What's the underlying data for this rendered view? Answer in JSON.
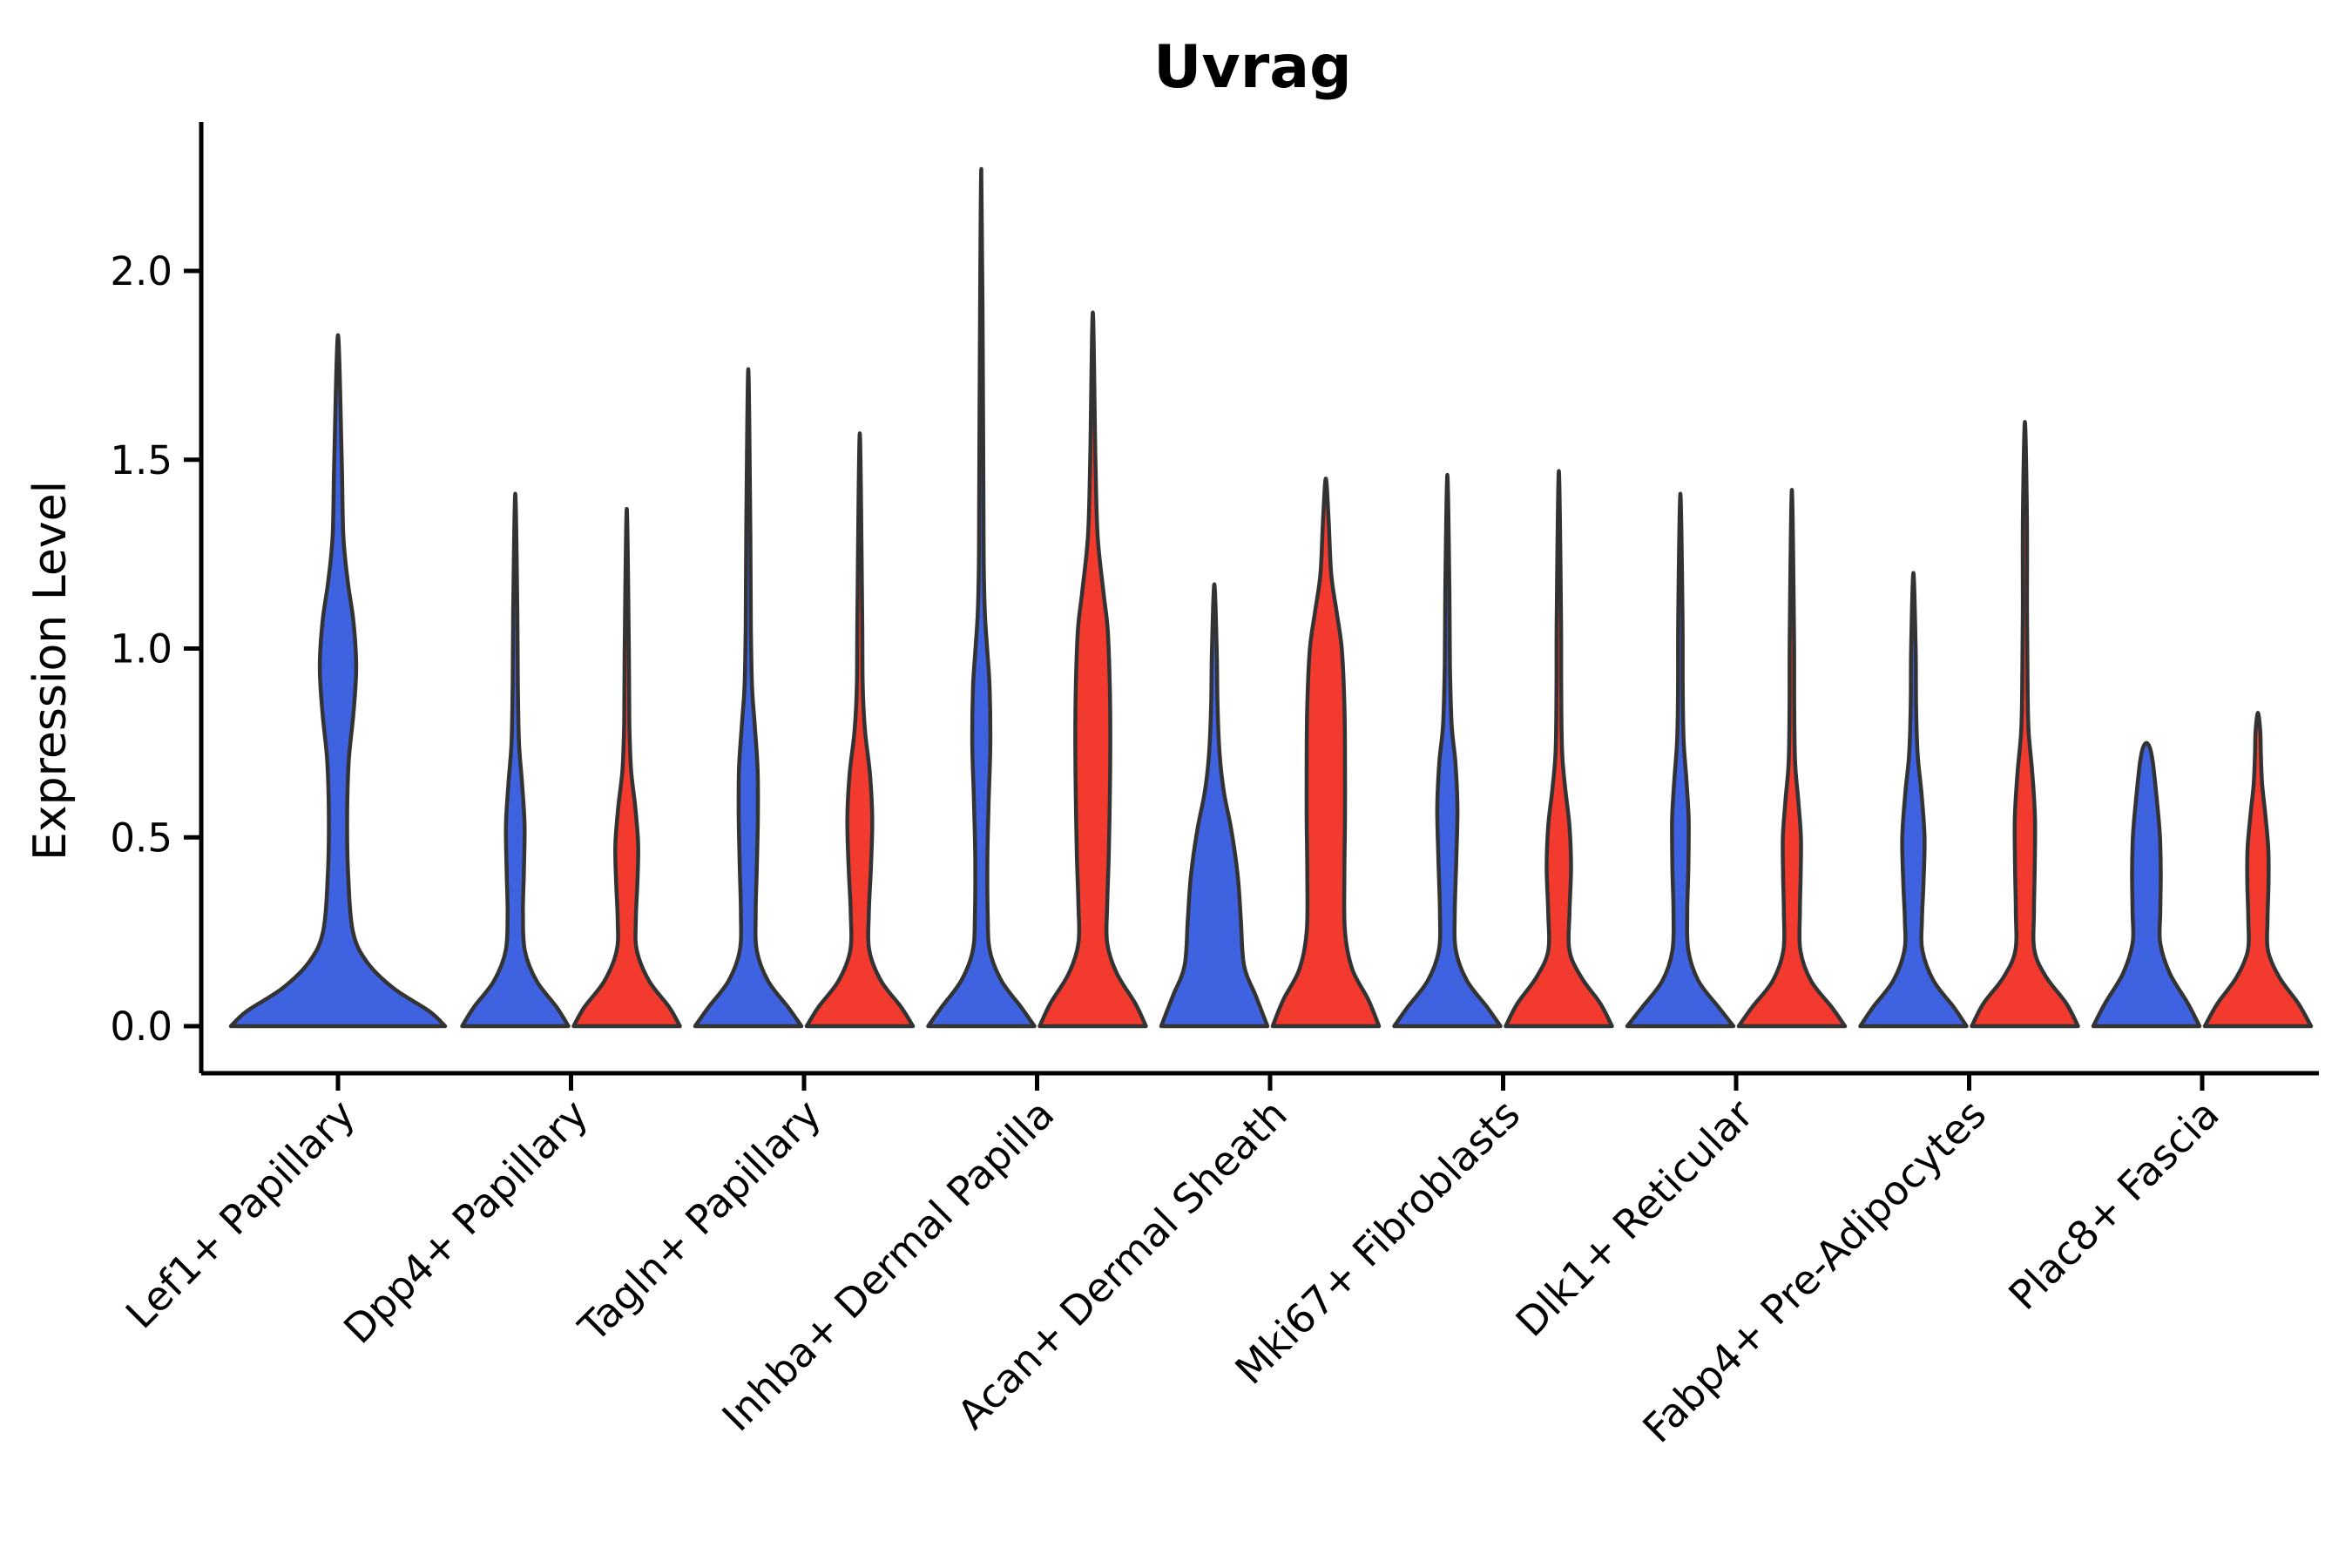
{
  "title": "Uvrag",
  "chart_data": {
    "type": "violin",
    "title": "Uvrag",
    "ylabel": "Expression Level",
    "xlabel": "",
    "grid": false,
    "legend": "none",
    "ylim": [
      -0.12,
      2.39
    ],
    "ytick_labels": [
      "0.0",
      "0.5",
      "1.0",
      "1.5",
      "2.0"
    ],
    "ytick_values": [
      0.0,
      0.5,
      1.0,
      1.5,
      2.0
    ],
    "colors": {
      "blue": "#3f62e0",
      "red": "#f23a2e",
      "outline": "#333333",
      "axis": "#000000"
    },
    "categories": [
      "Lef1+ Papillary",
      "Dpp4+ Papillary",
      "Tagln+ Papillary",
      "Inhba+ Dermal Papilla",
      "Acan+ Dermal Sheath",
      "Mki67+ Fibroblasts",
      "Dlk1+ Reticular",
      "Fabp4+ Pre-Adipocytes",
      "Plac8+ Fascia"
    ],
    "violins": [
      {
        "category": "Lef1+ Papillary",
        "violins": [
          {
            "group": "blue",
            "max": 1.83,
            "profile": [
              [
                0,
                1.0
              ],
              [
                0.04,
                0.85
              ],
              [
                0.1,
                0.52
              ],
              [
                0.17,
                0.27
              ],
              [
                0.25,
                0.14
              ],
              [
                0.4,
                0.095
              ],
              [
                0.55,
                0.085
              ],
              [
                0.7,
                0.1
              ],
              [
                0.83,
                0.145
              ],
              [
                0.95,
                0.17
              ],
              [
                1.07,
                0.145
              ],
              [
                1.18,
                0.09
              ],
              [
                1.3,
                0.05
              ],
              [
                1.5,
                0.035
              ],
              [
                1.83,
                0
              ]
            ]
          }
        ]
      },
      {
        "category": "Dpp4+ Papillary",
        "violins": [
          {
            "group": "blue",
            "max": 1.41,
            "profile": [
              [
                0,
                1.0
              ],
              [
                0.05,
                0.78
              ],
              [
                0.12,
                0.4
              ],
              [
                0.2,
                0.18
              ],
              [
                0.3,
                0.145
              ],
              [
                0.4,
                0.16
              ],
              [
                0.53,
                0.175
              ],
              [
                0.64,
                0.13
              ],
              [
                0.75,
                0.07
              ],
              [
                0.9,
                0.05
              ],
              [
                1.1,
                0.04
              ],
              [
                1.41,
                0
              ]
            ]
          },
          {
            "group": "red",
            "max": 1.37,
            "profile": [
              [
                0,
                1.0
              ],
              [
                0.05,
                0.8
              ],
              [
                0.12,
                0.42
              ],
              [
                0.2,
                0.19
              ],
              [
                0.28,
                0.17
              ],
              [
                0.38,
                0.2
              ],
              [
                0.48,
                0.215
              ],
              [
                0.58,
                0.16
              ],
              [
                0.68,
                0.08
              ],
              [
                0.8,
                0.05
              ],
              [
                1.0,
                0.04
              ],
              [
                1.37,
                0
              ]
            ]
          }
        ]
      },
      {
        "category": "Tagln+ Papillary",
        "violins": [
          {
            "group": "blue",
            "max": 1.74,
            "profile": [
              [
                0,
                1.0
              ],
              [
                0.05,
                0.75
              ],
              [
                0.12,
                0.37
              ],
              [
                0.2,
                0.16
              ],
              [
                0.3,
                0.14
              ],
              [
                0.42,
                0.16
              ],
              [
                0.55,
                0.18
              ],
              [
                0.68,
                0.175
              ],
              [
                0.8,
                0.12
              ],
              [
                0.9,
                0.07
              ],
              [
                1.05,
                0.05
              ],
              [
                1.3,
                0.04
              ],
              [
                1.74,
                0
              ]
            ]
          },
          {
            "group": "red",
            "max": 1.57,
            "profile": [
              [
                0,
                1.0
              ],
              [
                0.05,
                0.78
              ],
              [
                0.12,
                0.4
              ],
              [
                0.2,
                0.18
              ],
              [
                0.3,
                0.17
              ],
              [
                0.42,
                0.21
              ],
              [
                0.55,
                0.235
              ],
              [
                0.67,
                0.19
              ],
              [
                0.78,
                0.1
              ],
              [
                0.9,
                0.055
              ],
              [
                1.1,
                0.045
              ],
              [
                1.57,
                0
              ]
            ]
          }
        ]
      },
      {
        "category": "Inhba+ Dermal Papilla",
        "violins": [
          {
            "group": "blue",
            "max": 2.27,
            "profile": [
              [
                0,
                1.0
              ],
              [
                0.05,
                0.75
              ],
              [
                0.12,
                0.38
              ],
              [
                0.2,
                0.16
              ],
              [
                0.3,
                0.12
              ],
              [
                0.45,
                0.115
              ],
              [
                0.6,
                0.14
              ],
              [
                0.75,
                0.17
              ],
              [
                0.9,
                0.155
              ],
              [
                1.0,
                0.11
              ],
              [
                1.1,
                0.065
              ],
              [
                1.25,
                0.045
              ],
              [
                1.6,
                0.035
              ],
              [
                2.27,
                0
              ]
            ]
          },
          {
            "group": "red",
            "max": 1.89,
            "profile": [
              [
                0,
                1.0
              ],
              [
                0.06,
                0.8
              ],
              [
                0.14,
                0.45
              ],
              [
                0.22,
                0.27
              ],
              [
                0.32,
                0.27
              ],
              [
                0.45,
                0.3
              ],
              [
                0.6,
                0.32
              ],
              [
                0.75,
                0.33
              ],
              [
                0.9,
                0.32
              ],
              [
                1.05,
                0.28
              ],
              [
                1.15,
                0.2
              ],
              [
                1.3,
                0.09
              ],
              [
                1.5,
                0.05
              ],
              [
                1.89,
                0
              ]
            ]
          }
        ]
      },
      {
        "category": "Acan+ Dermal Sheath",
        "violins": [
          {
            "group": "blue",
            "max": 1.17,
            "profile": [
              [
                0,
                1.0
              ],
              [
                0.08,
                0.78
              ],
              [
                0.16,
                0.56
              ],
              [
                0.28,
                0.5
              ],
              [
                0.4,
                0.44
              ],
              [
                0.52,
                0.32
              ],
              [
                0.62,
                0.18
              ],
              [
                0.72,
                0.1
              ],
              [
                0.85,
                0.06
              ],
              [
                1.0,
                0.045
              ],
              [
                1.17,
                0
              ]
            ]
          },
          {
            "group": "red",
            "max": 1.45,
            "profile": [
              [
                0,
                1.0
              ],
              [
                0.07,
                0.8
              ],
              [
                0.15,
                0.5
              ],
              [
                0.25,
                0.36
              ],
              [
                0.4,
                0.35
              ],
              [
                0.55,
                0.36
              ],
              [
                0.7,
                0.36
              ],
              [
                0.85,
                0.35
              ],
              [
                1.0,
                0.3
              ],
              [
                1.1,
                0.2
              ],
              [
                1.2,
                0.1
              ],
              [
                1.35,
                0.05
              ],
              [
                1.45,
                0
              ]
            ]
          }
        ]
      },
      {
        "category": "Mki67+ Fibroblasts",
        "violins": [
          {
            "group": "blue",
            "max": 1.46,
            "profile": [
              [
                0,
                1.0
              ],
              [
                0.05,
                0.75
              ],
              [
                0.12,
                0.37
              ],
              [
                0.2,
                0.16
              ],
              [
                0.3,
                0.14
              ],
              [
                0.45,
                0.17
              ],
              [
                0.58,
                0.19
              ],
              [
                0.7,
                0.15
              ],
              [
                0.8,
                0.08
              ],
              [
                0.95,
                0.05
              ],
              [
                1.15,
                0.04
              ],
              [
                1.46,
                0
              ]
            ]
          },
          {
            "group": "red",
            "max": 1.47,
            "profile": [
              [
                0,
                1.0
              ],
              [
                0.06,
                0.78
              ],
              [
                0.13,
                0.42
              ],
              [
                0.2,
                0.2
              ],
              [
                0.3,
                0.2
              ],
              [
                0.42,
                0.23
              ],
              [
                0.53,
                0.2
              ],
              [
                0.63,
                0.12
              ],
              [
                0.73,
                0.06
              ],
              [
                0.9,
                0.045
              ],
              [
                1.1,
                0.04
              ],
              [
                1.47,
                0
              ]
            ]
          }
        ]
      },
      {
        "category": "Dlk1+ Reticular",
        "violins": [
          {
            "group": "blue",
            "max": 1.41,
            "profile": [
              [
                0,
                1.0
              ],
              [
                0.05,
                0.72
              ],
              [
                0.12,
                0.34
              ],
              [
                0.2,
                0.15
              ],
              [
                0.3,
                0.13
              ],
              [
                0.42,
                0.15
              ],
              [
                0.55,
                0.155
              ],
              [
                0.66,
                0.11
              ],
              [
                0.76,
                0.06
              ],
              [
                0.9,
                0.045
              ],
              [
                1.1,
                0.04
              ],
              [
                1.41,
                0
              ]
            ]
          },
          {
            "group": "red",
            "max": 1.42,
            "profile": [
              [
                0,
                1.0
              ],
              [
                0.05,
                0.75
              ],
              [
                0.12,
                0.36
              ],
              [
                0.2,
                0.16
              ],
              [
                0.3,
                0.15
              ],
              [
                0.4,
                0.165
              ],
              [
                0.5,
                0.17
              ],
              [
                0.6,
                0.12
              ],
              [
                0.7,
                0.06
              ],
              [
                0.85,
                0.045
              ],
              [
                1.05,
                0.04
              ],
              [
                1.42,
                0
              ]
            ]
          }
        ]
      },
      {
        "category": "Fabp4+ Pre-Adipocytes",
        "violins": [
          {
            "group": "blue",
            "max": 1.2,
            "profile": [
              [
                0,
                1.0
              ],
              [
                0.05,
                0.76
              ],
              [
                0.12,
                0.38
              ],
              [
                0.2,
                0.17
              ],
              [
                0.28,
                0.16
              ],
              [
                0.38,
                0.19
              ],
              [
                0.5,
                0.21
              ],
              [
                0.62,
                0.15
              ],
              [
                0.72,
                0.08
              ],
              [
                0.85,
                0.05
              ],
              [
                1.0,
                0.042
              ],
              [
                1.2,
                0
              ]
            ]
          },
          {
            "group": "red",
            "max": 1.6,
            "profile": [
              [
                0,
                1.0
              ],
              [
                0.06,
                0.78
              ],
              [
                0.13,
                0.4
              ],
              [
                0.2,
                0.18
              ],
              [
                0.3,
                0.17
              ],
              [
                0.42,
                0.185
              ],
              [
                0.55,
                0.19
              ],
              [
                0.67,
                0.14
              ],
              [
                0.78,
                0.07
              ],
              [
                0.9,
                0.05
              ],
              [
                1.1,
                0.04
              ],
              [
                1.35,
                0.038
              ],
              [
                1.6,
                0
              ]
            ]
          }
        ]
      },
      {
        "category": "Plac8+ Fascia",
        "violins": [
          {
            "group": "blue",
            "max": 0.75,
            "profile": [
              [
                0,
                1.0
              ],
              [
                0.06,
                0.78
              ],
              [
                0.14,
                0.44
              ],
              [
                0.22,
                0.26
              ],
              [
                0.3,
                0.26
              ],
              [
                0.4,
                0.27
              ],
              [
                0.5,
                0.255
              ],
              [
                0.58,
                0.21
              ],
              [
                0.65,
                0.16
              ],
              [
                0.7,
                0.12
              ],
              [
                0.735,
                0.07
              ],
              [
                0.75,
                0
              ]
            ]
          },
          {
            "group": "red",
            "max": 0.83,
            "profile": [
              [
                0,
                1.0
              ],
              [
                0.06,
                0.76
              ],
              [
                0.13,
                0.4
              ],
              [
                0.2,
                0.19
              ],
              [
                0.28,
                0.18
              ],
              [
                0.38,
                0.2
              ],
              [
                0.47,
                0.195
              ],
              [
                0.56,
                0.14
              ],
              [
                0.64,
                0.08
              ],
              [
                0.72,
                0.055
              ],
              [
                0.78,
                0.045
              ],
              [
                0.83,
                0
              ]
            ]
          }
        ]
      }
    ]
  }
}
